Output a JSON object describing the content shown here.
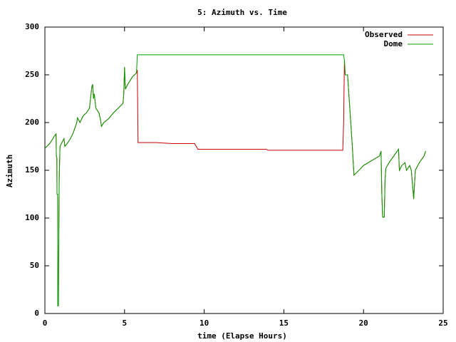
{
  "chart_data": {
    "type": "line",
    "title": "5: Azimuth vs. Time",
    "xlabel": "time (Elapse Hours)",
    "ylabel": "Azimuth",
    "x": [
      0,
      0.3,
      0.5,
      0.6,
      0.7,
      0.71,
      0.72,
      0.75,
      0.76,
      0.8,
      0.81,
      0.85,
      0.86,
      0.9,
      0.95,
      1.1,
      1.2,
      1.25,
      1.4,
      1.6,
      1.8,
      2.0,
      2.05,
      2.2,
      2.4,
      2.6,
      2.8,
      2.9,
      2.95,
      3.0,
      3.05,
      3.1,
      3.2,
      3.4,
      3.5,
      3.55,
      3.7,
      4.0,
      4.3,
      4.6,
      4.9,
      4.95,
      5.0,
      5.05,
      5.2,
      5.5,
      5.75,
      5.8,
      5.85,
      7.0,
      8.0,
      9.4,
      9.6,
      12,
      13.9,
      14.0,
      15,
      17,
      18.7,
      18.75,
      18.8,
      18.85,
      19.0,
      19.2,
      19.3,
      19.4,
      19.6,
      20,
      20.5,
      21,
      21.1,
      21.15,
      21.2,
      21.3,
      21.35,
      21.4,
      21.6,
      21.9,
      22.2,
      22.25,
      22.4,
      22.6,
      22.7,
      22.9,
      23.0,
      23.1,
      23.15,
      23.25,
      23.5,
      23.8,
      23.9
    ],
    "series": [
      {
        "name": "Observed",
        "color": "#cc0000",
        "values": [
          173,
          178,
          183,
          186,
          188,
          175,
          165,
          163,
          125,
          125,
          8,
          8,
          50,
          140,
          175,
          180,
          183,
          175,
          178,
          183,
          190,
          200,
          205,
          200,
          207,
          210,
          215,
          230,
          238,
          240,
          225,
          230,
          215,
          210,
          202,
          196,
          200,
          204,
          210,
          215,
          220,
          230,
          258,
          235,
          240,
          248,
          252,
          255,
          179,
          179,
          178,
          178,
          172,
          172,
          172,
          171,
          171,
          171,
          171,
          200,
          265,
          250,
          250,
          200,
          175,
          145,
          148,
          155,
          160,
          165,
          170,
          125,
          101,
          101,
          140,
          152,
          158,
          165,
          172,
          150,
          155,
          158,
          150,
          155,
          150,
          130,
          120,
          150,
          158,
          165,
          170
        ]
      },
      {
        "name": "Dome",
        "color": "#00a000",
        "values": [
          173,
          178,
          183,
          186,
          188,
          175,
          165,
          163,
          125,
          125,
          8,
          8,
          50,
          140,
          175,
          180,
          183,
          175,
          178,
          183,
          190,
          200,
          205,
          200,
          207,
          210,
          215,
          230,
          238,
          240,
          225,
          230,
          215,
          210,
          202,
          196,
          200,
          204,
          210,
          215,
          220,
          230,
          258,
          235,
          240,
          248,
          252,
          271,
          271,
          271,
          271,
          271,
          271,
          271,
          271,
          271,
          271,
          271,
          271,
          271,
          265,
          250,
          250,
          200,
          175,
          145,
          148,
          155,
          160,
          165,
          170,
          125,
          101,
          101,
          140,
          152,
          158,
          165,
          172,
          150,
          155,
          158,
          150,
          155,
          150,
          130,
          120,
          150,
          158,
          165,
          170
        ]
      }
    ],
    "xlim": [
      0,
      25
    ],
    "xticks": [
      0,
      5,
      10,
      15,
      20,
      25
    ],
    "ylim": [
      0,
      300
    ],
    "yticks": [
      0,
      50,
      100,
      150,
      200,
      250,
      300
    ],
    "legend": "top-right"
  }
}
